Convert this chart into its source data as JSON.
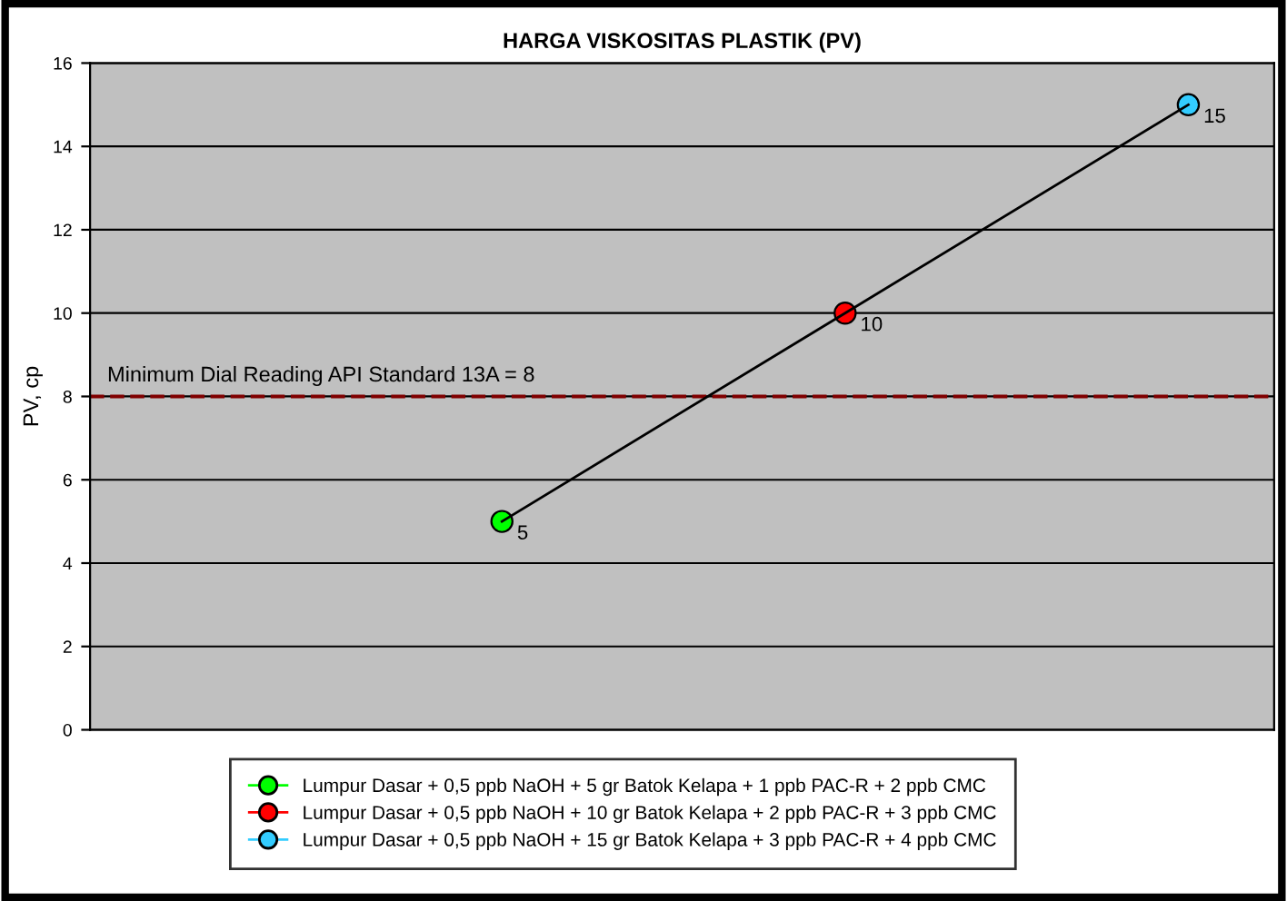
{
  "chart_data": {
    "type": "line",
    "title": "HARGA VISKOSITAS PLASTIK (PV)",
    "ylabel": "PV, cp",
    "categories": [
      null,
      null,
      null
    ],
    "series": [
      {
        "color": "#000000",
        "values": [
          5,
          10,
          15
        ],
        "marker": "none",
        "value_labels": [
          "5",
          "10",
          "15"
        ]
      },
      {
        "type": "scatter",
        "name": "Lumpur Dasar + 0,5 ppb NaOH + 5 gr Batok Kelapa + 1 ppb PAC-R + 2 ppb CMC",
        "color": "#00ff00",
        "values": [
          5,
          null,
          null
        ]
      },
      {
        "type": "scatter",
        "name": "Lumpur Dasar + 0,5 ppb NaOH + 10 gr Batok Kelapa + 2 ppb PAC-R + 3 ppb CMC",
        "color": "#ff0000",
        "values": [
          null,
          10,
          null
        ]
      },
      {
        "type": "scatter",
        "name": "Lumpur Dasar + 0,5 ppb NaOH + 15 gr Batok Kelapa + 3 ppb PAC-R + 4 ppb CMC",
        "color": "#33ccff",
        "values": [
          null,
          null,
          15
        ]
      }
    ],
    "marker": "circle",
    "ylim": [
      0,
      16
    ],
    "yticks": [
      0,
      2,
      4,
      6,
      8,
      10,
      12,
      14,
      16
    ],
    "grid": "y",
    "ref_lines": [
      {
        "axis": "y",
        "value": 8,
        "label": "Minimum Dial Reading API Standard 13A = 8",
        "color": "#800000",
        "line_style": "dashed"
      }
    ],
    "legend": "bottom",
    "tick_labels": "y"
  }
}
